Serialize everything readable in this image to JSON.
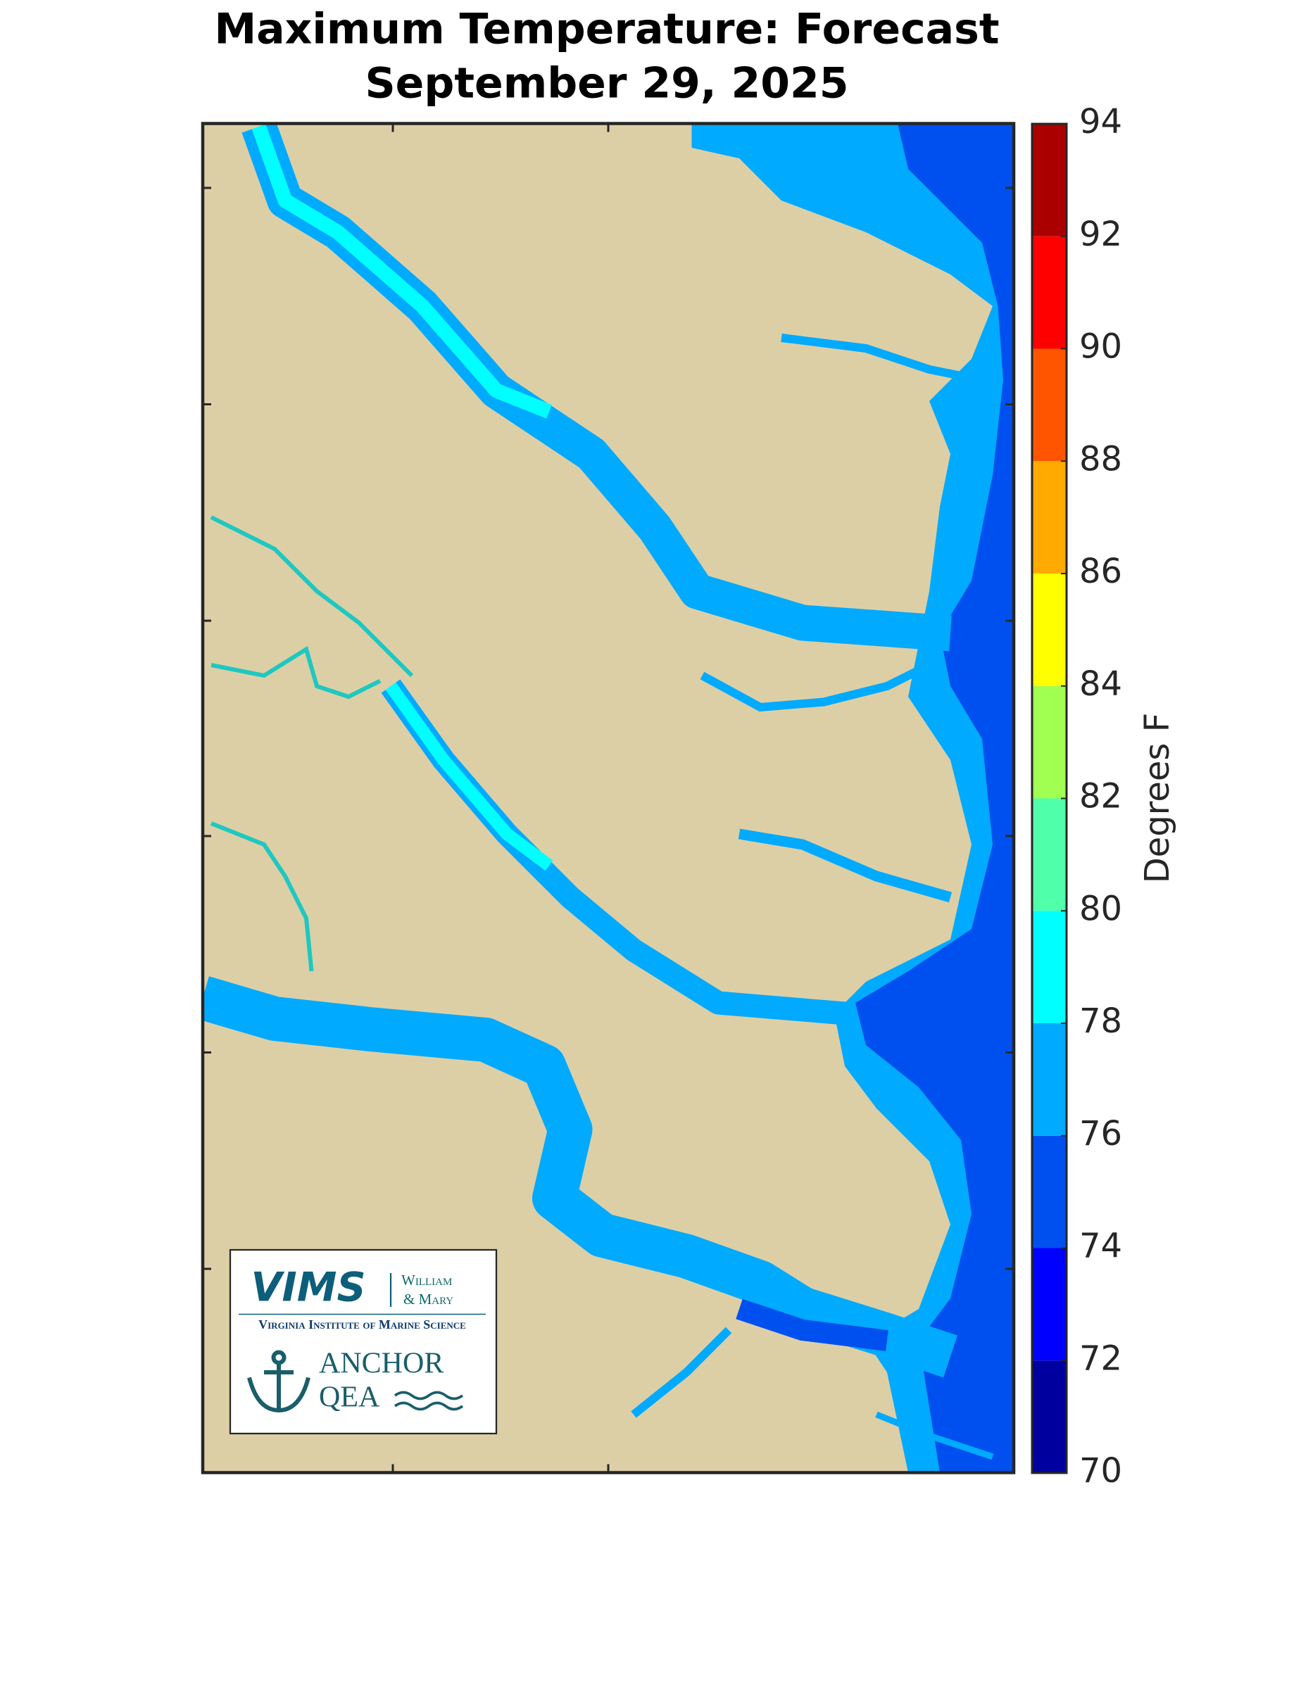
{
  "title": [
    "Maximum Temperature: Forecast",
    "September 29, 2025"
  ],
  "colorbar": {
    "label": "Degrees F",
    "ticks": [
      70,
      72,
      74,
      76,
      78,
      80,
      82,
      84,
      86,
      88,
      90,
      92,
      94
    ],
    "colors": [
      "#00009f",
      "#0000ff",
      "#0050f0",
      "#00aaff",
      "#00ffff",
      "#50ffaa",
      "#a0ff50",
      "#ffff00",
      "#ffaa00",
      "#ff5500",
      "#ff0000",
      "#aa0000"
    ]
  },
  "logos": {
    "vims": "VIMS",
    "william": "William",
    "mary": "& Mary",
    "institute": "Virginia Institute of Marine Science",
    "anchor": "ANCHOR",
    "qea": "QEA"
  }
}
